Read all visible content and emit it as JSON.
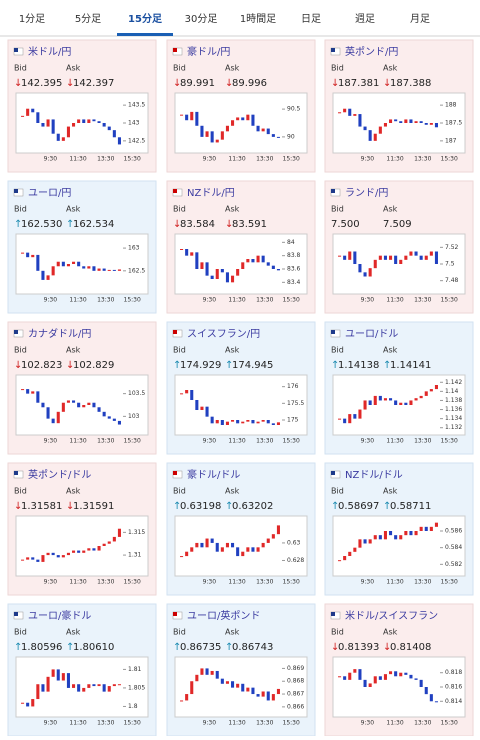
{
  "tabs": [
    "1分足",
    "5分足",
    "15分足",
    "30分足",
    "1時間足",
    "日足",
    "週足",
    "月足"
  ],
  "active_tab": 2,
  "labels": {
    "bid": "Bid",
    "ask": "Ask"
  },
  "time_labels": [
    "9:30",
    "11:30",
    "13:30",
    "15:30"
  ],
  "cards": [
    {
      "title": "米ドル/円",
      "bid": "142.395",
      "ask": "142.397",
      "dir": "down",
      "ylim": [
        142.3,
        143.7
      ],
      "yticks": [
        143.5,
        143,
        142.5
      ],
      "closes": [
        143.2,
        143.4,
        143.3,
        143.0,
        142.9,
        143.1,
        142.7,
        142.5,
        142.6,
        142.9,
        143.0,
        143.1,
        143.0,
        143.1,
        143.05,
        143.0,
        142.9,
        142.8,
        142.6,
        142.4
      ]
    },
    {
      "title": "豪ドル/円",
      "bid": "89.991",
      "ask": "89.996",
      "dir": "down",
      "ylim": [
        89.8,
        90.7
      ],
      "yticks": [
        90.5,
        90
      ],
      "closes": [
        90.4,
        90.3,
        90.45,
        90.2,
        90.0,
        90.1,
        89.9,
        89.95,
        90.1,
        90.2,
        90.3,
        90.35,
        90.3,
        90.4,
        90.2,
        90.1,
        90.15,
        90.05,
        90.0,
        89.99
      ]
    },
    {
      "title": "英ポンド/円",
      "bid": "187.381",
      "ask": "187.388",
      "dir": "down",
      "ylim": [
        186.8,
        188.2
      ],
      "yticks": [
        188,
        187.5,
        187
      ],
      "closes": [
        187.8,
        187.9,
        187.7,
        187.75,
        187.4,
        187.3,
        187.0,
        187.2,
        187.4,
        187.5,
        187.6,
        187.55,
        187.5,
        187.6,
        187.5,
        187.55,
        187.5,
        187.45,
        187.5,
        187.38
      ]
    },
    {
      "title": "ユーロ/円",
      "bid": "162.530",
      "ask": "162.534",
      "dir": "up",
      "ylim": [
        162.1,
        163.2
      ],
      "yticks": [
        163,
        162.5
      ],
      "closes": [
        162.9,
        162.8,
        162.85,
        162.5,
        162.3,
        162.4,
        162.6,
        162.7,
        162.6,
        162.65,
        162.7,
        162.6,
        162.55,
        162.6,
        162.5,
        162.55,
        162.5,
        162.52,
        162.5,
        162.53
      ]
    },
    {
      "title": "NZドル/円",
      "bid": "83.584",
      "ask": "83.591",
      "dir": "down",
      "ylim": [
        83.3,
        84.05
      ],
      "yticks": [
        84,
        83.8,
        83.6,
        83.4
      ],
      "closes": [
        83.9,
        83.8,
        83.85,
        83.6,
        83.7,
        83.5,
        83.45,
        83.6,
        83.55,
        83.4,
        83.5,
        83.6,
        83.7,
        83.75,
        83.7,
        83.8,
        83.7,
        83.65,
        83.6,
        83.58
      ]
    },
    {
      "title": "ランド/円",
      "bid": "7.500",
      "ask": "7.509",
      "dir": "flat",
      "ylim": [
        7.47,
        7.53
      ],
      "yticks": [
        7.52,
        7.5,
        7.48
      ],
      "closes": [
        7.51,
        7.505,
        7.515,
        7.5,
        7.49,
        7.485,
        7.495,
        7.505,
        7.51,
        7.505,
        7.51,
        7.5,
        7.505,
        7.51,
        7.515,
        7.51,
        7.505,
        7.51,
        7.515,
        7.5
      ]
    },
    {
      "title": "カナダドル/円",
      "bid": "102.823",
      "ask": "102.829",
      "dir": "down",
      "ylim": [
        102.7,
        103.8
      ],
      "yticks": [
        103.5,
        103
      ],
      "closes": [
        103.6,
        103.5,
        103.55,
        103.3,
        103.2,
        102.95,
        102.85,
        103.1,
        103.3,
        103.35,
        103.3,
        103.2,
        103.25,
        103.3,
        103.2,
        103.1,
        103.0,
        102.95,
        102.9,
        102.82
      ]
    },
    {
      "title": "スイスフラン/円",
      "bid": "174.929",
      "ask": "174.945",
      "dir": "up",
      "ylim": [
        174.7,
        176.2
      ],
      "yticks": [
        176,
        175.5,
        175
      ],
      "closes": [
        175.8,
        175.9,
        175.6,
        175.3,
        175.4,
        175.1,
        174.9,
        175.0,
        174.85,
        174.95,
        175.0,
        174.9,
        174.95,
        175.0,
        174.9,
        174.95,
        175.0,
        174.9,
        174.85,
        174.93
      ]
    },
    {
      "title": "ユーロ/ドル",
      "bid": "1.14138",
      "ask": "1.14141",
      "dir": "up",
      "ylim": [
        1.1315,
        1.1425
      ],
      "yticks": [
        1.142,
        1.14,
        1.138,
        1.136,
        1.134,
        1.132
      ],
      "closes": [
        1.134,
        1.133,
        1.135,
        1.134,
        1.136,
        1.138,
        1.137,
        1.139,
        1.138,
        1.1385,
        1.138,
        1.137,
        1.1375,
        1.137,
        1.138,
        1.1385,
        1.139,
        1.14,
        1.1405,
        1.1414
      ]
    },
    {
      "title": "英ポンド/ドル",
      "bid": "1.31581",
      "ask": "1.31591",
      "dir": "down",
      "ylim": [
        1.3065,
        1.3175
      ],
      "yticks": [
        1.315,
        1.31
      ],
      "closes": [
        1.309,
        1.3095,
        1.309,
        1.3085,
        1.31,
        1.3105,
        1.31,
        1.3095,
        1.31,
        1.3105,
        1.311,
        1.3105,
        1.311,
        1.3115,
        1.311,
        1.312,
        1.3125,
        1.313,
        1.314,
        1.3158
      ]
    },
    {
      "title": "豪ドル/ドル",
      "bid": "0.63198",
      "ask": "0.63202",
      "dir": "up",
      "ylim": [
        0.6268,
        0.6325
      ],
      "yticks": [
        0.63,
        0.628
      ],
      "closes": [
        0.6285,
        0.629,
        0.6295,
        0.63,
        0.6295,
        0.6305,
        0.63,
        0.629,
        0.6295,
        0.63,
        0.6295,
        0.6285,
        0.629,
        0.6295,
        0.629,
        0.6295,
        0.63,
        0.6305,
        0.631,
        0.632
      ]
    },
    {
      "title": "NZドル/ドル",
      "bid": "0.58697",
      "ask": "0.58711",
      "dir": "up",
      "ylim": [
        0.5812,
        0.5872
      ],
      "yticks": [
        0.586,
        0.584,
        0.582
      ],
      "closes": [
        0.5825,
        0.583,
        0.5835,
        0.584,
        0.585,
        0.5845,
        0.585,
        0.5855,
        0.585,
        0.586,
        0.5855,
        0.585,
        0.5855,
        0.586,
        0.5855,
        0.586,
        0.5865,
        0.586,
        0.5865,
        0.587
      ]
    },
    {
      "title": "ユーロ/豪ドル",
      "bid": "1.80596",
      "ask": "1.80610",
      "dir": "up",
      "ylim": [
        1.7985,
        1.812
      ],
      "yticks": [
        1.81,
        1.805,
        1.8
      ],
      "closes": [
        1.801,
        1.8,
        1.802,
        1.806,
        1.804,
        1.808,
        1.81,
        1.807,
        1.809,
        1.805,
        1.806,
        1.804,
        1.805,
        1.806,
        1.8055,
        1.806,
        1.804,
        1.8055,
        1.806,
        1.806
      ]
    },
    {
      "title": "ユーロ/英ポンド",
      "bid": "0.86735",
      "ask": "0.86743",
      "dir": "up",
      "ylim": [
        0.8656,
        0.8695
      ],
      "yticks": [
        0.869,
        0.868,
        0.867,
        0.866
      ],
      "closes": [
        0.8665,
        0.867,
        0.868,
        0.8685,
        0.869,
        0.8685,
        0.8688,
        0.8682,
        0.8678,
        0.868,
        0.8675,
        0.8678,
        0.8672,
        0.8675,
        0.867,
        0.8668,
        0.8672,
        0.8665,
        0.867,
        0.8674
      ]
    },
    {
      "title": "米ドル/スイスフラン",
      "bid": "0.81393",
      "ask": "0.81408",
      "dir": "down",
      "ylim": [
        0.8125,
        0.8195
      ],
      "yticks": [
        0.818,
        0.816,
        0.814
      ],
      "closes": [
        0.8175,
        0.817,
        0.818,
        0.8185,
        0.817,
        0.816,
        0.8165,
        0.8175,
        0.817,
        0.8178,
        0.8182,
        0.8175,
        0.818,
        0.8177,
        0.8172,
        0.817,
        0.816,
        0.815,
        0.814,
        0.8139
      ]
    }
  ]
}
